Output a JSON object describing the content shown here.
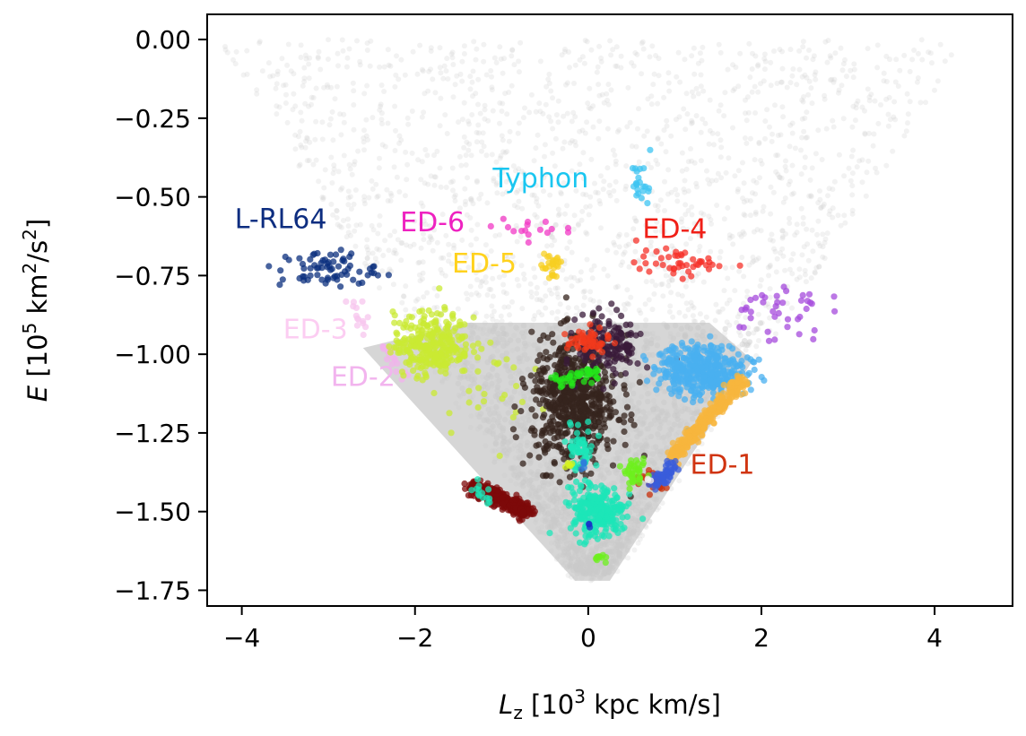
{
  "chart_data": {
    "type": "scatter",
    "title": "",
    "xlabel": {
      "symbol": "L",
      "sub": "z",
      "pre": " [10",
      "sup": "3",
      "post": " kpc km/s]"
    },
    "ylabel": {
      "symbol": "E",
      "pre": " [10",
      "sup": "5",
      "mid": " km",
      "sup2": "2",
      "post": "/s",
      "sup3": "2",
      "end": "]"
    },
    "xlim": [
      -4.4,
      4.9
    ],
    "ylim": [
      -1.8,
      0.08
    ],
    "xticks": [
      -4,
      -2,
      0,
      2,
      4
    ],
    "xtick_labels": [
      "−4",
      "−2",
      "0",
      "2",
      "4"
    ],
    "yticks": [
      0.0,
      -0.25,
      -0.5,
      -0.75,
      -1.0,
      -1.25,
      -1.5,
      -1.75
    ],
    "ytick_labels": [
      "0.00",
      "−0.25",
      "−0.50",
      "−0.75",
      "−1.00",
      "−1.25",
      "−1.50",
      "−1.75"
    ],
    "grid": false,
    "legend": "none",
    "background_color": "#c8c8c8",
    "clusters": [
      {
        "label": "Typhon",
        "color": "#3ec4f2",
        "label_color": "#1ac6f0",
        "label_x": -0.55,
        "label_y": -0.47,
        "shape": "blob",
        "cx": 0.62,
        "cy": -0.46,
        "sx": 0.06,
        "sy": 0.04,
        "n": 22
      },
      {
        "label": "L-RL64",
        "color": "#0b2f7e",
        "label_color": "#0d2d80",
        "label_x": -3.55,
        "label_y": -0.6,
        "shape": "blob",
        "cx": -3.0,
        "cy": -0.73,
        "sx": 0.28,
        "sy": 0.03,
        "n": 70
      },
      {
        "label": "ED-6",
        "color": "#f23ac6",
        "label_color": "#ee22c0",
        "label_x": -1.8,
        "label_y": -0.61,
        "shape": "blob",
        "cx": -0.75,
        "cy": -0.6,
        "sx": 0.25,
        "sy": 0.02,
        "n": 16
      },
      {
        "label": "ED-4",
        "color": "#f5312a",
        "label_color": "#f02018",
        "label_x": 1.0,
        "label_y": -0.63,
        "shape": "blob",
        "cx": 1.05,
        "cy": -0.71,
        "sx": 0.25,
        "sy": 0.02,
        "n": 45
      },
      {
        "label": "ED-5",
        "color": "#f7cf22",
        "label_color": "#ffd21e",
        "label_x": -1.2,
        "label_y": -0.74,
        "shape": "blob",
        "cx": -0.42,
        "cy": -0.72,
        "sx": 0.06,
        "sy": 0.03,
        "n": 28
      },
      {
        "label": "ED-3",
        "color": "#f7c6ee",
        "label_color": "#fccdf2",
        "label_x": -3.15,
        "label_y": -0.95,
        "shape": "line",
        "x0": -2.75,
        "y0": -0.83,
        "x1": -2.55,
        "y1": -0.92,
        "n": 14
      },
      {
        "label": "ED-2",
        "color": "#f2b1ec",
        "label_color": "#f2b4ee",
        "label_x": -2.6,
        "label_y": -1.1,
        "shape": "line",
        "x0": -2.35,
        "y0": -0.97,
        "x1": -2.1,
        "y1": -1.08,
        "n": 18
      },
      {
        "label": "ED-1",
        "color": "#c8310e",
        "label_color": "#d03410",
        "label_x": 1.55,
        "label_y": -1.38,
        "shape": "blob",
        "cx": 0.75,
        "cy": -1.4,
        "sx": 0.12,
        "sy": 0.02,
        "n": 24
      },
      {
        "label": "",
        "color": "#c9ea33",
        "shape": "blob",
        "cx": -1.8,
        "cy": -0.97,
        "sx": 0.22,
        "sy": 0.05,
        "n": 300
      },
      {
        "label": "",
        "color": "#c9ea33",
        "shape": "blob",
        "cx": -1.2,
        "cy": -1.08,
        "sx": 0.28,
        "sy": 0.08,
        "n": 26
      },
      {
        "label": "",
        "color": "#a64bdc",
        "shape": "blob",
        "cx": 2.15,
        "cy": -0.86,
        "sx": 0.28,
        "sy": 0.05,
        "n": 40
      },
      {
        "label": "",
        "color": "#35241d",
        "shape": "blob",
        "cx": -0.15,
        "cy": -1.15,
        "sx": 0.25,
        "sy": 0.1,
        "n": 650
      },
      {
        "label": "",
        "color": "#3a1b3a",
        "shape": "blob",
        "cx": 0.25,
        "cy": -0.97,
        "sx": 0.18,
        "sy": 0.05,
        "n": 140
      },
      {
        "label": "",
        "color": "#f23a1c",
        "shape": "blob",
        "cx": 0.0,
        "cy": -0.96,
        "sx": 0.12,
        "sy": 0.02,
        "n": 55
      },
      {
        "label": "",
        "color": "#24e51b",
        "shape": "line",
        "x0": -0.4,
        "y0": -1.09,
        "x1": 0.1,
        "y1": -1.06,
        "n": 45
      },
      {
        "label": "",
        "color": "#49b0f0",
        "shape": "blob",
        "cx": 1.3,
        "cy": -1.05,
        "sx": 0.25,
        "sy": 0.04,
        "n": 420
      },
      {
        "label": "",
        "color": "#f7b53e",
        "shape": "line",
        "x0": 0.95,
        "y0": -1.33,
        "x1": 1.8,
        "y1": -1.08,
        "n": 300
      },
      {
        "label": "",
        "color": "#1ce5b8",
        "shape": "blob",
        "cx": -0.08,
        "cy": -1.3,
        "sx": 0.08,
        "sy": 0.03,
        "n": 60
      },
      {
        "label": "",
        "color": "#7d0a0a",
        "shape": "line",
        "x0": -1.35,
        "y0": -1.42,
        "x1": -0.7,
        "y1": -1.5,
        "n": 360
      },
      {
        "label": "",
        "color": "#1ce5b8",
        "shape": "blob",
        "cx": 0.1,
        "cy": -1.5,
        "sx": 0.16,
        "sy": 0.04,
        "n": 260
      },
      {
        "label": "",
        "color": "#3a5cdb",
        "shape": "line",
        "x0": 0.75,
        "y0": -1.42,
        "x1": 1.0,
        "y1": -1.35,
        "n": 55
      },
      {
        "label": "",
        "color": "#6ef01e",
        "shape": "blob",
        "cx": 0.55,
        "cy": -1.38,
        "sx": 0.06,
        "sy": 0.02,
        "n": 40
      },
      {
        "label": "",
        "color": "#1ce5b8",
        "shape": "line",
        "x0": -1.35,
        "y0": -1.42,
        "x1": -1.15,
        "y1": -1.46,
        "n": 14
      },
      {
        "label": "",
        "color": "#6ef01e",
        "shape": "blob",
        "cx": 0.15,
        "cy": -1.65,
        "sx": 0.05,
        "sy": 0.008,
        "n": 10
      },
      {
        "label": "",
        "color": "#1a2fc8",
        "shape": "blob",
        "cx": 0.02,
        "cy": -1.54,
        "sx": 0.01,
        "sy": 0.005,
        "n": 3
      },
      {
        "label": "",
        "color": "#2f7ddb",
        "shape": "blob",
        "cx": -0.08,
        "cy": -1.35,
        "sx": 0.02,
        "sy": 0.008,
        "n": 6
      },
      {
        "label": "",
        "color": "#d6f31e",
        "shape": "blob",
        "cx": -0.22,
        "cy": -1.35,
        "sx": 0.03,
        "sy": 0.008,
        "n": 6
      },
      {
        "label": "",
        "color": "#f0f0f0",
        "shape": "blob",
        "cx": 0.7,
        "cy": -1.4,
        "sx": 0.015,
        "sy": 0.008,
        "n": 3
      }
    ]
  }
}
